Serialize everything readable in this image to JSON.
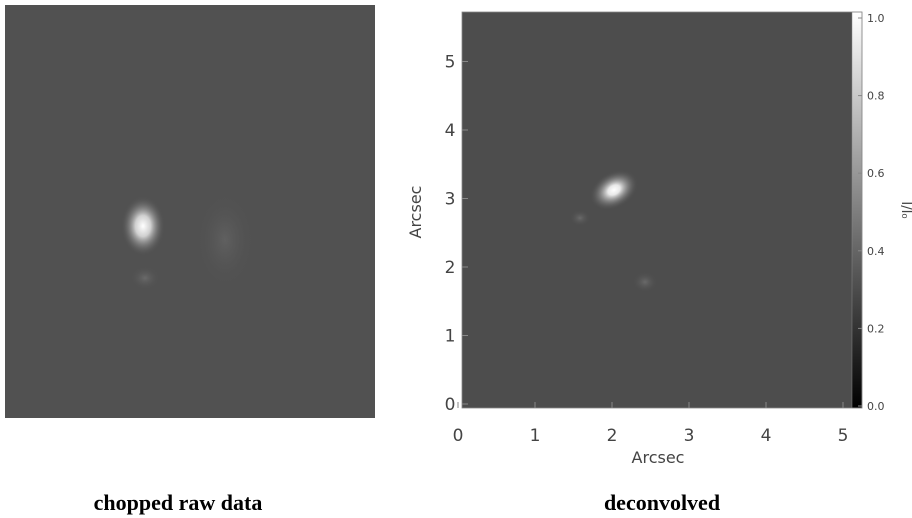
{
  "panels": [
    {
      "caption": "chopped raw data"
    },
    {
      "caption": "deconvolved",
      "x_axis": {
        "label": "Arcsec",
        "ticks": [
          "0",
          "1",
          "2",
          "3",
          "4",
          "5"
        ]
      },
      "y_axis": {
        "label": "Arcsec",
        "ticks": [
          "0",
          "1",
          "2",
          "3",
          "4",
          "5"
        ]
      },
      "colorbar": {
        "label": "I/I₀",
        "ticks": [
          "0.0",
          "0.2",
          "0.4",
          "0.6",
          "0.8",
          "1.0"
        ]
      }
    }
  ]
}
